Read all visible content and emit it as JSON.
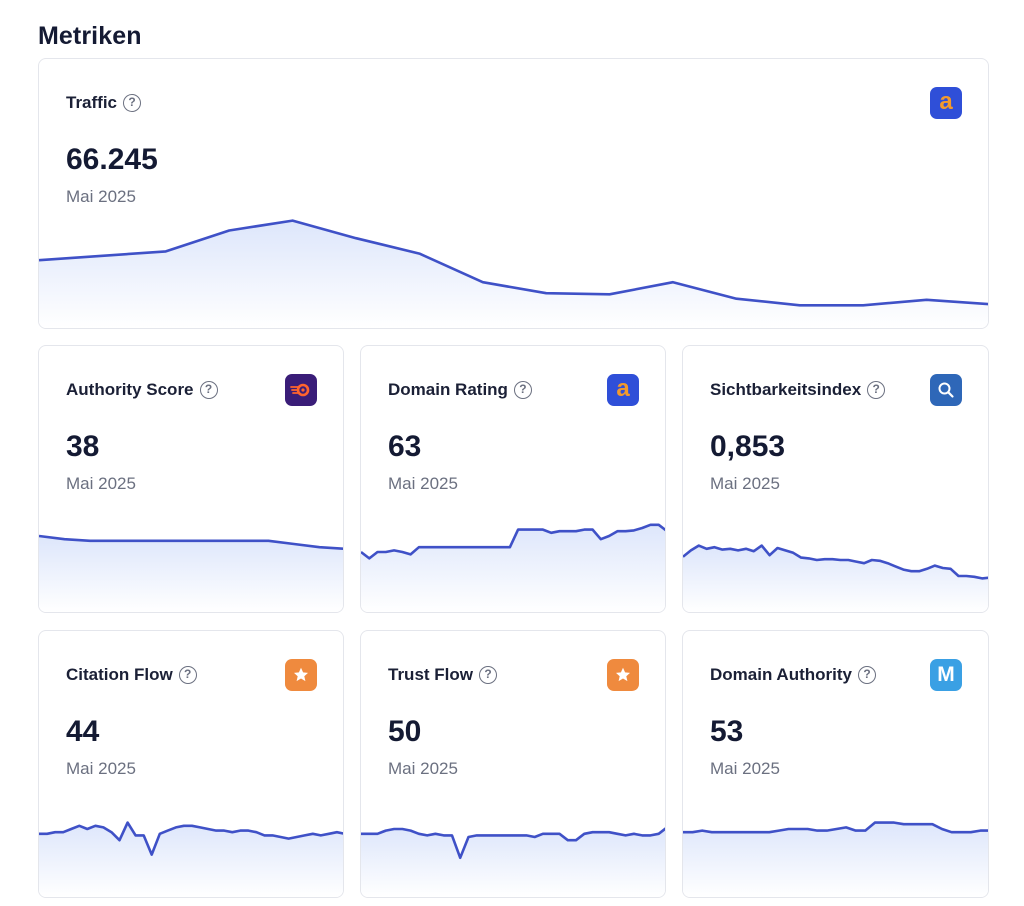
{
  "page": {
    "title": "Metriken"
  },
  "colors": {
    "line": "#3f51c7",
    "fill_top": "#dde6fb",
    "fill_bottom": "#ffffff",
    "ahrefs_badge": "#2f4fd8",
    "ahrefs_letter": "#f39a2c",
    "semrush_badge": "#3a1d78",
    "semrush_flame": "#ff642d",
    "majestic_badge": "#ef8a3e",
    "sistrix_badge": "#2e67b8",
    "moz_badge": "#3aa0e4"
  },
  "cards": {
    "traffic": {
      "title": "Traffic",
      "value": "66.245",
      "date": "Mai 2025",
      "source_icon": "ahrefs-icon",
      "source_letter": "a",
      "trend": [
        0.58,
        0.62,
        0.66,
        0.85,
        0.94,
        0.78,
        0.64,
        0.38,
        0.28,
        0.27,
        0.38,
        0.23,
        0.17,
        0.17,
        0.22,
        0.18
      ]
    },
    "authority_score": {
      "title": "Authority Score",
      "value": "38",
      "date": "Mai 2025",
      "source_icon": "semrush-icon",
      "trend": [
        0.9,
        0.86,
        0.84,
        0.84,
        0.84,
        0.84,
        0.84,
        0.84,
        0.84,
        0.84,
        0.8,
        0.76,
        0.74
      ]
    },
    "domain_rating": {
      "title": "Domain Rating",
      "value": "63",
      "date": "Mai 2025",
      "source_icon": "ahrefs-icon",
      "source_letter": "a",
      "trend": [
        0.7,
        0.62,
        0.7,
        0.7,
        0.72,
        0.7,
        0.67,
        0.76,
        0.76,
        0.76,
        0.76,
        0.76,
        0.76,
        0.76,
        0.76,
        0.76,
        0.76,
        0.76,
        0.76,
        0.98,
        0.98,
        0.98,
        0.98,
        0.94,
        0.96,
        0.96,
        0.96,
        0.98,
        0.98,
        0.86,
        0.9,
        0.96,
        0.96,
        0.97,
        1.0,
        1.04,
        1.04,
        0.96
      ]
    },
    "sichtbarkeitsindex": {
      "title": "Sichtbarkeitsindex",
      "value": "0,853",
      "date": "Mai 2025",
      "source_icon": "search-icon",
      "trend": [
        0.64,
        0.72,
        0.78,
        0.74,
        0.76,
        0.73,
        0.74,
        0.72,
        0.74,
        0.71,
        0.78,
        0.66,
        0.75,
        0.72,
        0.69,
        0.63,
        0.62,
        0.6,
        0.61,
        0.61,
        0.6,
        0.6,
        0.58,
        0.56,
        0.6,
        0.59,
        0.56,
        0.52,
        0.48,
        0.46,
        0.46,
        0.49,
        0.53,
        0.5,
        0.49,
        0.4,
        0.4,
        0.39,
        0.37,
        0.38
      ]
    },
    "citation_flow": {
      "title": "Citation Flow",
      "value": "44",
      "date": "Mai 2025",
      "source_icon": "star-icon",
      "trend": [
        0.74,
        0.74,
        0.76,
        0.76,
        0.8,
        0.84,
        0.8,
        0.84,
        0.82,
        0.76,
        0.66,
        0.88,
        0.72,
        0.72,
        0.48,
        0.74,
        0.78,
        0.82,
        0.84,
        0.84,
        0.82,
        0.8,
        0.78,
        0.78,
        0.76,
        0.78,
        0.78,
        0.76,
        0.72,
        0.72,
        0.7,
        0.68,
        0.7,
        0.72,
        0.74,
        0.72,
        0.74,
        0.76,
        0.74
      ]
    },
    "trust_flow": {
      "title": "Trust Flow",
      "value": "50",
      "date": "Mai 2025",
      "source_icon": "star-icon",
      "trend": [
        0.74,
        0.74,
        0.74,
        0.78,
        0.8,
        0.8,
        0.78,
        0.74,
        0.72,
        0.74,
        0.72,
        0.72,
        0.44,
        0.7,
        0.72,
        0.72,
        0.72,
        0.72,
        0.72,
        0.72,
        0.72,
        0.7,
        0.74,
        0.74,
        0.74,
        0.66,
        0.66,
        0.74,
        0.76,
        0.76,
        0.76,
        0.74,
        0.72,
        0.74,
        0.72,
        0.72,
        0.74,
        0.82
      ]
    },
    "domain_authority": {
      "title": "Domain Authority",
      "value": "53",
      "date": "Mai 2025",
      "source_icon": "moz-icon",
      "source_letter": "M",
      "trend": [
        0.76,
        0.76,
        0.78,
        0.76,
        0.76,
        0.76,
        0.76,
        0.76,
        0.76,
        0.76,
        0.78,
        0.8,
        0.8,
        0.8,
        0.78,
        0.78,
        0.8,
        0.82,
        0.78,
        0.78,
        0.88,
        0.88,
        0.88,
        0.86,
        0.86,
        0.86,
        0.86,
        0.8,
        0.76,
        0.76,
        0.76,
        0.78,
        0.78
      ]
    }
  }
}
